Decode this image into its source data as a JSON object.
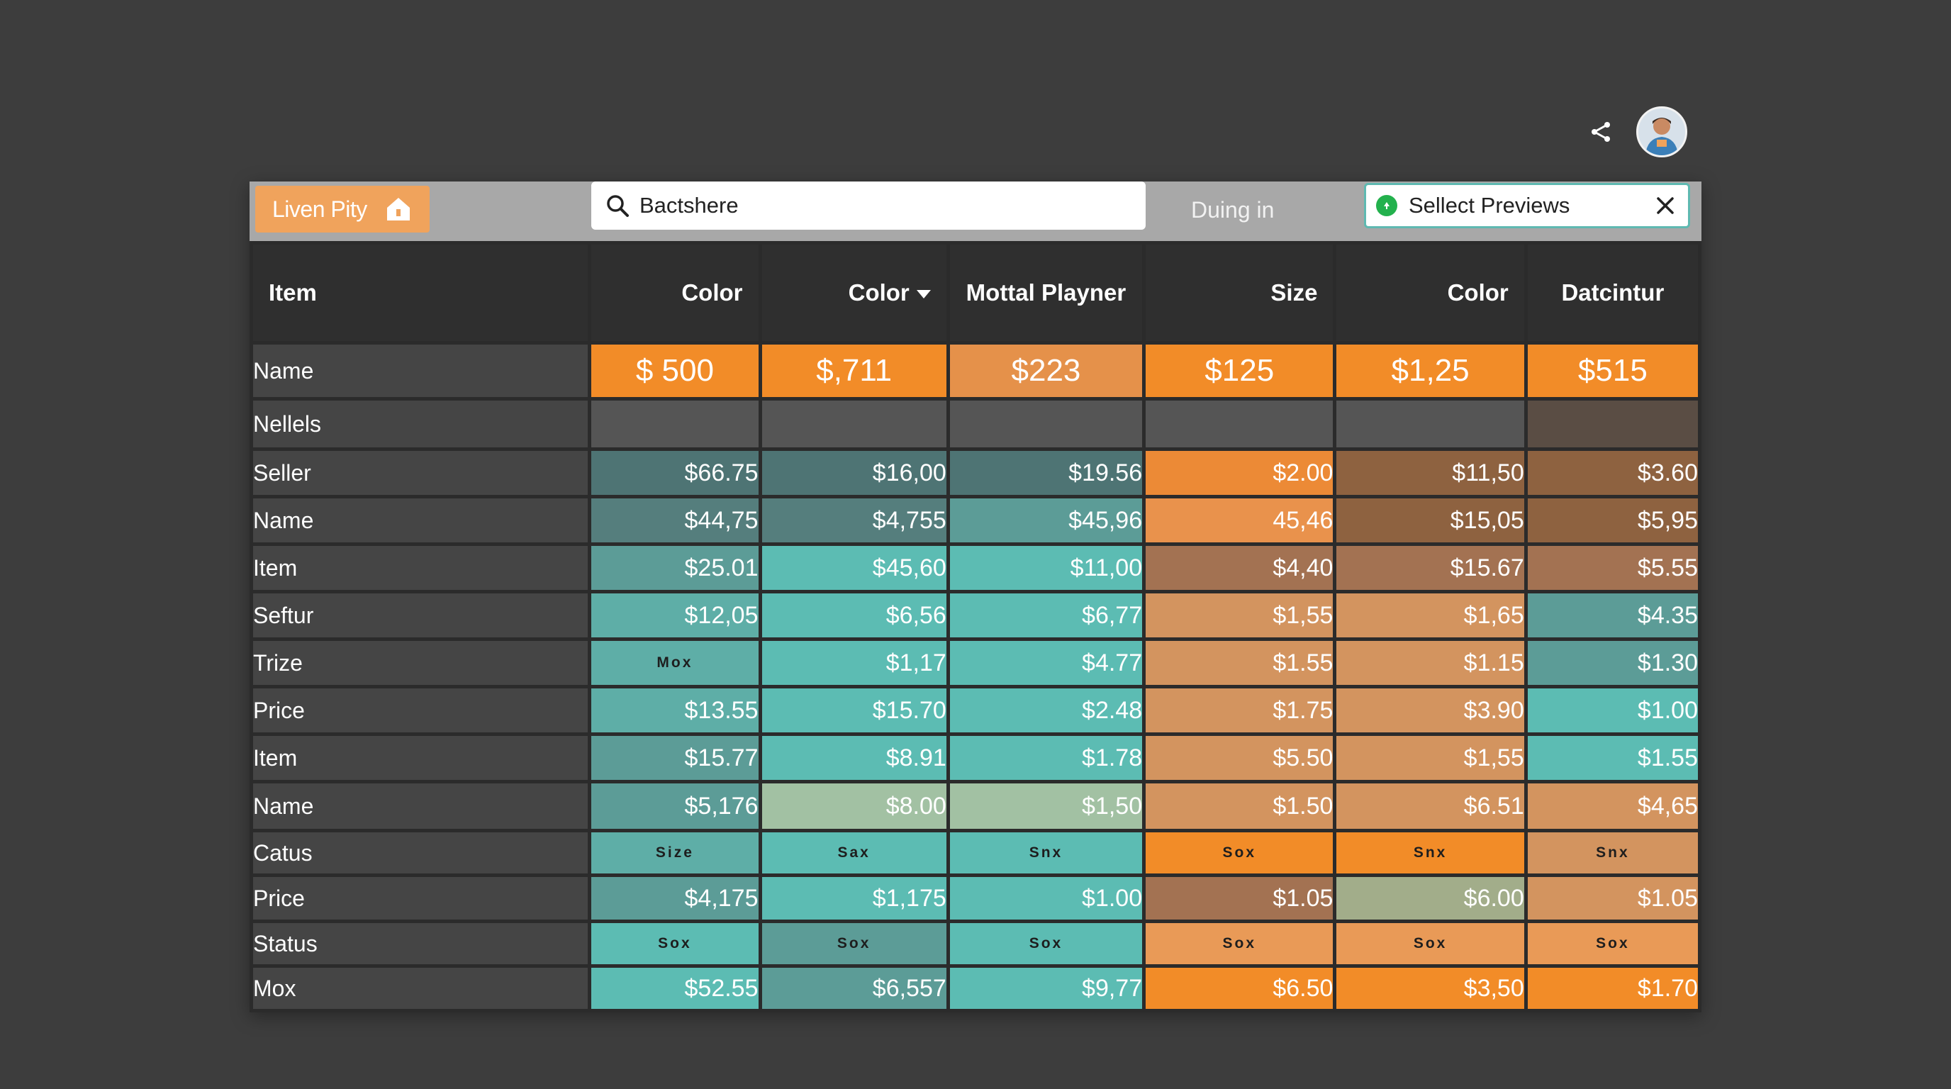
{
  "top_actions": {
    "share_icon": "share-icon",
    "avatar_icon": "user-avatar"
  },
  "toolbar": {
    "brand": "Liven Pity",
    "search_value": "Bactshere",
    "label": "Duing in",
    "select": "Sellect Previews"
  },
  "colors": {
    "orange": "#f28c28",
    "orange_light": "#e99a57",
    "tan": "#c98b5c",
    "brown": "#8e6240",
    "teal_dark": "#4e7474",
    "teal_mid": "#5c9c97",
    "teal": "#5cbcb3",
    "sage": "#a2c1a3",
    "gray_cell": "#555555"
  },
  "table": {
    "headers": [
      "Item",
      "Color",
      "Color",
      "Mottal Playner",
      "Size",
      "Color",
      "Datcintur"
    ],
    "rows": [
      {
        "label": "Name",
        "height": 74,
        "style": "big",
        "cells": [
          [
            "$ 500",
            "#f28c28"
          ],
          [
            "$,711",
            "#f28c28"
          ],
          [
            "$223",
            "#e5914a"
          ],
          [
            "$125",
            "#f28c28"
          ],
          [
            "$1,25",
            "#f28c28"
          ],
          [
            "$515",
            "#f28c28"
          ]
        ]
      },
      {
        "label": "Nellels",
        "height": 66,
        "style": "",
        "cells": [
          [
            "",
            "#555555"
          ],
          [
            "",
            "#555555"
          ],
          [
            "",
            "#555555"
          ],
          [
            "",
            "#555555"
          ],
          [
            "",
            "#555555"
          ],
          [
            "",
            "#5a4d44"
          ]
        ]
      },
      {
        "label": "Seller",
        "height": 62,
        "style": "",
        "cells": [
          [
            "$66.75",
            "#4e7474"
          ],
          [
            "$16,00",
            "#4e7474"
          ],
          [
            "$19.56",
            "#4e7474"
          ],
          [
            "$2.00",
            "#ec8a36"
          ],
          [
            "$11,50",
            "#8e6240"
          ],
          [
            "$3.60",
            "#8e6240"
          ]
        ]
      },
      {
        "label": "Name",
        "height": 62,
        "style": "",
        "cells": [
          [
            "$44,75",
            "#557e7d"
          ],
          [
            "$4,755",
            "#557e7d"
          ],
          [
            "$45,96",
            "#5c9c97"
          ],
          [
            "45,46",
            "#e9924c"
          ],
          [
            "$15,05",
            "#8e6240"
          ],
          [
            "$5,95",
            "#8e6240"
          ]
        ]
      },
      {
        "label": "Item",
        "height": 62,
        "style": "",
        "cells": [
          [
            "$25.01",
            "#5c9c97"
          ],
          [
            "$45,60",
            "#5cbcb3"
          ],
          [
            "$11,00",
            "#5cbcb3"
          ],
          [
            "$4,40",
            "#a37252"
          ],
          [
            "$15.67",
            "#a37252"
          ],
          [
            "$5.55",
            "#a37252"
          ]
        ]
      },
      {
        "label": "Seftur",
        "height": 62,
        "style": "",
        "cells": [
          [
            "$12,05",
            "#5eaea7"
          ],
          [
            "$6,56",
            "#5cbcb3"
          ],
          [
            "$6,77",
            "#5cbcb3"
          ],
          [
            "$1,55",
            "#d3945f"
          ],
          [
            "$1,65",
            "#d3945f"
          ],
          [
            "$4.35",
            "#5c9c97"
          ]
        ]
      },
      {
        "label": "Trize",
        "height": 62,
        "style": "mixed",
        "cells": [
          [
            "Mox",
            "#5eaea7",
            "small"
          ],
          [
            "$1,17",
            "#5cbcb3"
          ],
          [
            "$4.77",
            "#5cbcb3"
          ],
          [
            "$1.55",
            "#d3945f"
          ],
          [
            "$1.15",
            "#d3945f"
          ],
          [
            "$1.30",
            "#5c9c97"
          ]
        ]
      },
      {
        "label": "Price",
        "height": 62,
        "style": "",
        "cells": [
          [
            "$13.55",
            "#5eaea7"
          ],
          [
            "$15.70",
            "#5cbcb3"
          ],
          [
            "$2.48",
            "#5cbcb3"
          ],
          [
            "$1.75",
            "#d3945f"
          ],
          [
            "$3.90",
            "#d3945f"
          ],
          [
            "$1.00",
            "#5cbcb3"
          ]
        ]
      },
      {
        "label": "Item",
        "height": 62,
        "style": "",
        "cells": [
          [
            "$15.77",
            "#5c9c97"
          ],
          [
            "$8.91",
            "#5cbcb3"
          ],
          [
            "$1.78",
            "#5cbcb3"
          ],
          [
            "$5.50",
            "#d3945f"
          ],
          [
            "$1,55",
            "#d3945f"
          ],
          [
            "$1.55",
            "#5cbcb3"
          ]
        ]
      },
      {
        "label": "Name",
        "height": 64,
        "style": "",
        "cells": [
          [
            "$5,176",
            "#5c9c97"
          ],
          [
            "$8.00",
            "#a2c1a3"
          ],
          [
            "$1,50",
            "#a2c1a3"
          ],
          [
            "$1.50",
            "#d3945f"
          ],
          [
            "$6.51",
            "#d3945f"
          ],
          [
            "$4,65",
            "#d3945f"
          ]
        ]
      },
      {
        "label": "Catus",
        "height": 58,
        "style": "small",
        "cells": [
          [
            "Size",
            "#5eaea7"
          ],
          [
            "Sax",
            "#5cbcb3"
          ],
          [
            "Snx",
            "#5cbcb3"
          ],
          [
            "Sox",
            "#f28c28"
          ],
          [
            "Snx",
            "#f28c28"
          ],
          [
            "Snx",
            "#d3945f"
          ]
        ]
      },
      {
        "label": "Price",
        "height": 60,
        "style": "",
        "cells": [
          [
            "$4,175",
            "#5c9c97"
          ],
          [
            "$1,175",
            "#5cbcb3"
          ],
          [
            "$1.00",
            "#5cbcb3"
          ],
          [
            "$1.05",
            "#a37252"
          ],
          [
            "$6.00",
            "#a2ad8a"
          ],
          [
            "$1.05",
            "#d3945f"
          ]
        ]
      },
      {
        "label": "Status",
        "height": 58,
        "style": "small",
        "cells": [
          [
            "Sox",
            "#5cbcb3"
          ],
          [
            "Sox",
            "#5c9c97"
          ],
          [
            "Sox",
            "#5cbcb3"
          ],
          [
            "Sox",
            "#e99a57"
          ],
          [
            "Sox",
            "#e99a57"
          ],
          [
            "Sox",
            "#e99a57"
          ]
        ]
      },
      {
        "label": "Mox",
        "height": 58,
        "style": "",
        "cells": [
          [
            "$52.55",
            "#5cbcb3"
          ],
          [
            "$6,557",
            "#5c9c97"
          ],
          [
            "$9,77",
            "#5cbcb3"
          ],
          [
            "$6.50",
            "#f28c28"
          ],
          [
            "$3,50",
            "#f28c28"
          ],
          [
            "$1.70",
            "#f28c28"
          ]
        ]
      }
    ]
  }
}
